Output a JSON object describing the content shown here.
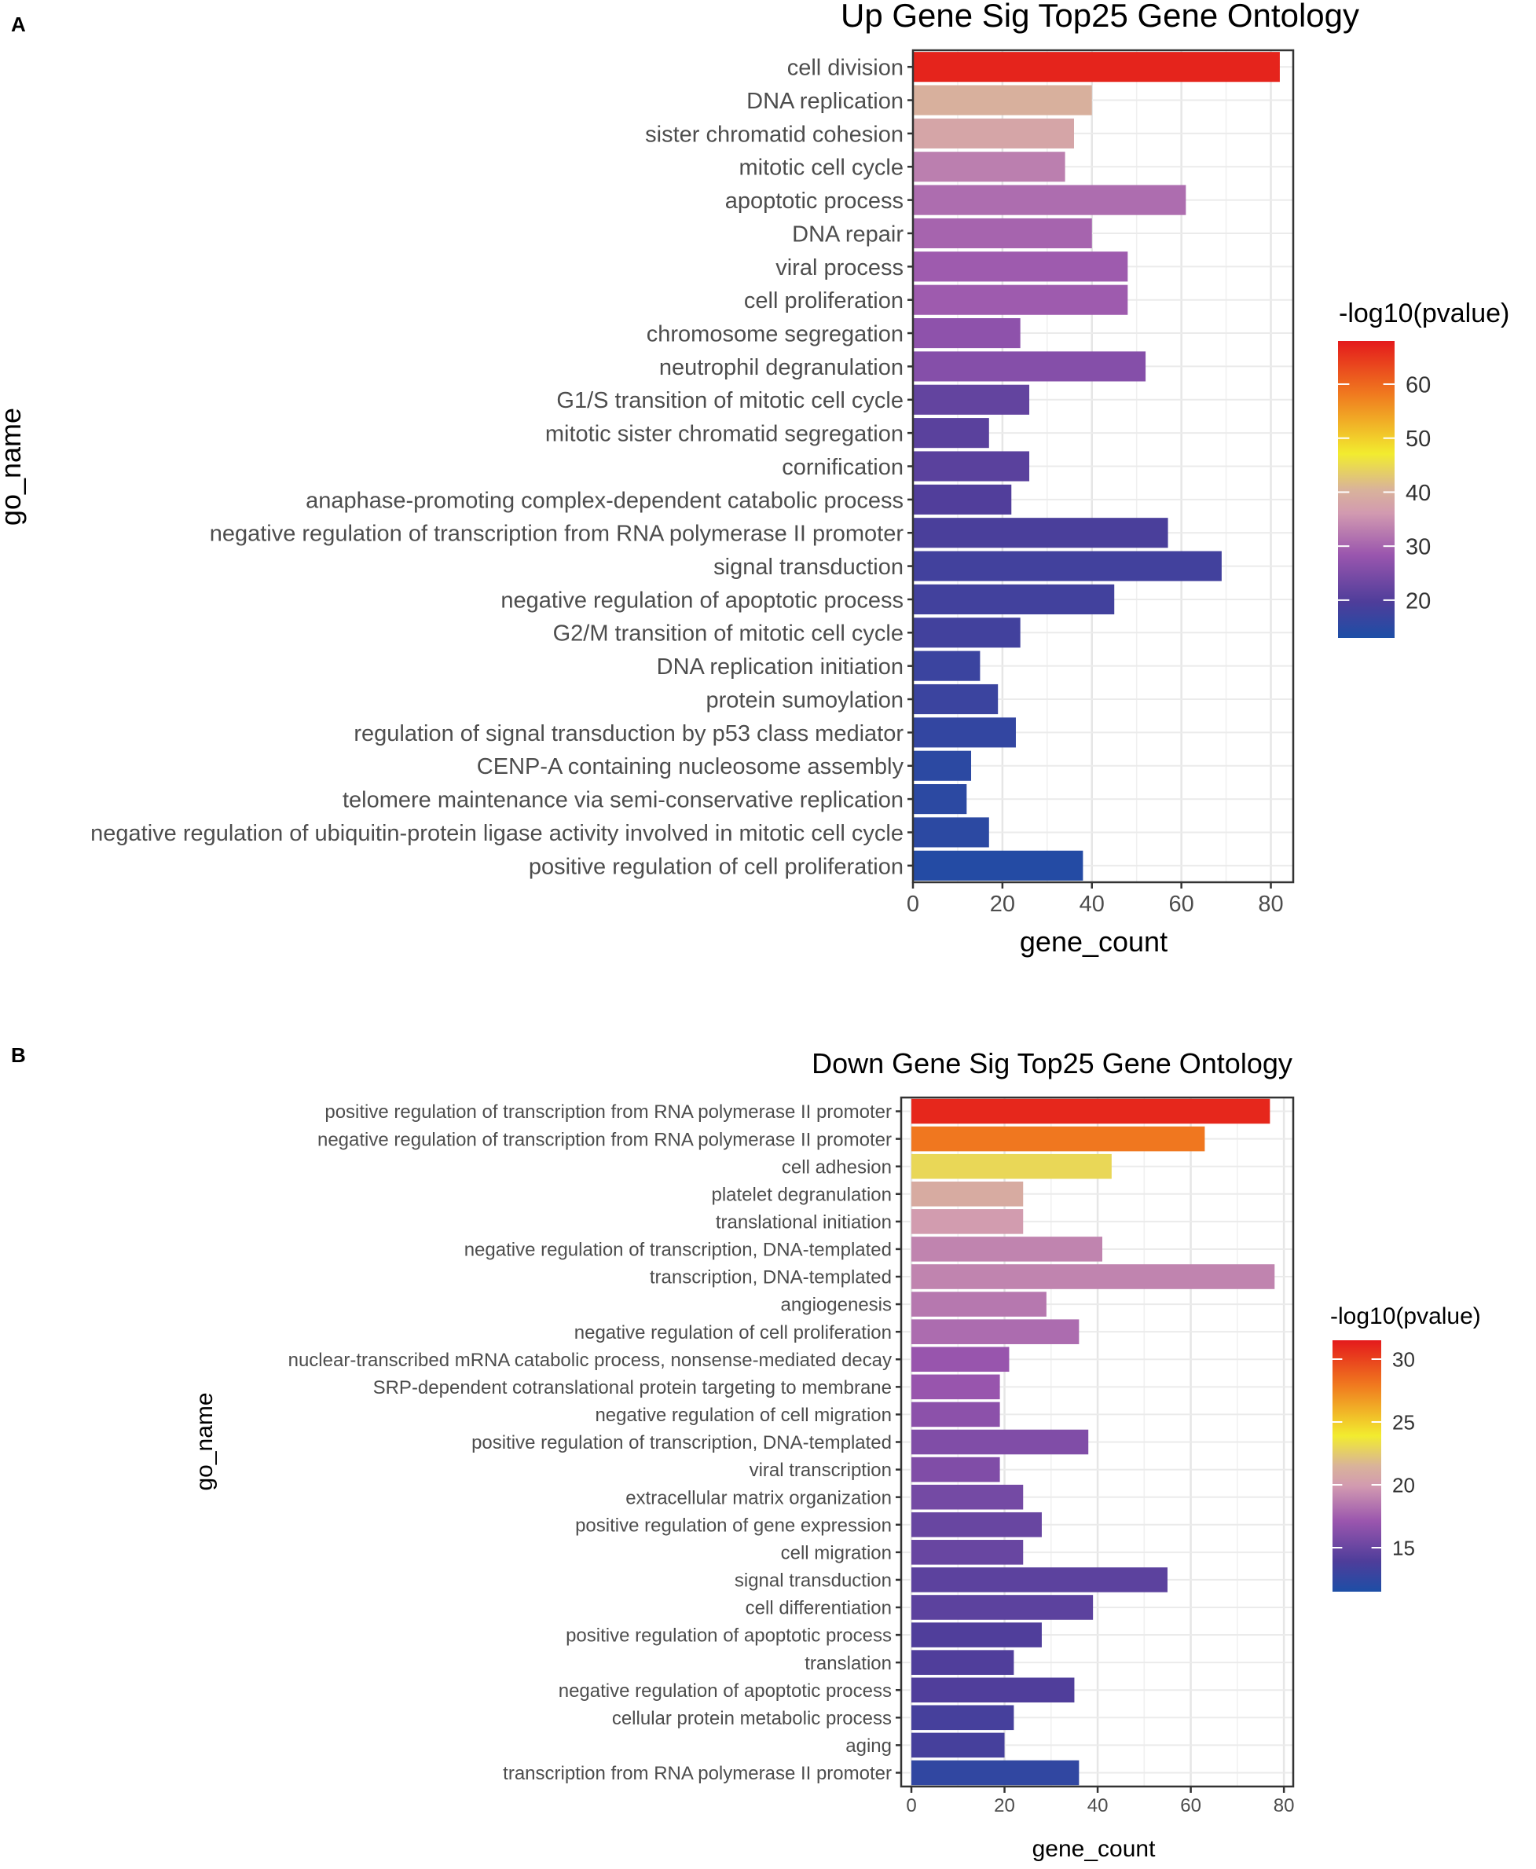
{
  "chart_data": [
    {
      "panel": "A",
      "type": "bar",
      "orientation": "horizontal",
      "title": "Up Gene Sig Top25 Gene Ontology",
      "xlabel": "gene_count",
      "ylabel": "go_name",
      "xlim": [
        0,
        85
      ],
      "xticks": [
        0,
        20,
        40,
        60,
        80
      ],
      "grid": true,
      "legend": {
        "title": "-log10(pvalue)",
        "position": "right",
        "range": [
          13,
          68
        ],
        "ticks": [
          20,
          30,
          40,
          50,
          60
        ]
      },
      "categories": [
        "cell division",
        "DNA replication",
        "sister chromatid cohesion",
        "mitotic cell cycle",
        "apoptotic process",
        "DNA repair",
        "viral process",
        "cell proliferation",
        "chromosome segregation",
        "neutrophil degranulation",
        "G1/S transition of mitotic cell cycle",
        "mitotic sister chromatid segregation",
        "cornification",
        "anaphase-promoting complex-dependent catabolic process",
        "negative regulation of transcription from RNA polymerase II promoter",
        "signal transduction",
        "negative regulation of apoptotic process",
        "G2/M transition of mitotic cell cycle",
        "DNA replication initiation",
        "protein sumoylation",
        "regulation of signal transduction by p53 class mediator",
        "CENP-A containing nucleosome assembly",
        "telomere maintenance via semi-conservative replication",
        "negative regulation of ubiquitin-protein ligase activity involved in mitotic cell cycle",
        "positive regulation of cell proliferation"
      ],
      "values": [
        82,
        40,
        36,
        34,
        61,
        40,
        48,
        48,
        24,
        52,
        26,
        17,
        26,
        22,
        57,
        69,
        45,
        24,
        15,
        19,
        23,
        13,
        12,
        17,
        38
      ],
      "neglog10p": [
        67,
        40,
        38,
        33,
        31,
        30,
        29,
        29,
        27,
        26,
        22,
        21,
        21,
        20,
        19,
        18,
        18,
        18,
        17,
        17,
        16,
        15,
        15,
        15,
        14
      ]
    },
    {
      "panel": "B",
      "type": "bar",
      "orientation": "horizontal",
      "title": "Down Gene Sig Top25 Gene Ontology",
      "xlabel": "gene_count",
      "ylabel": "go_name",
      "xlim": [
        0,
        82
      ],
      "xticks": [
        0,
        20,
        40,
        60,
        80
      ],
      "grid": true,
      "legend": {
        "title": "-log10(pvalue)",
        "position": "right",
        "range": [
          11.5,
          31.5
        ],
        "ticks": [
          15,
          20,
          25,
          30
        ]
      },
      "categories": [
        "positive regulation of transcription from RNA polymerase II promoter",
        "negative regulation of transcription from RNA polymerase II promoter",
        "cell adhesion",
        "platelet degranulation",
        "translational initiation",
        "negative regulation of transcription, DNA-templated",
        "transcription, DNA-templated",
        "angiogenesis",
        "negative regulation of cell proliferation",
        "nuclear-transcribed mRNA catabolic process, nonsense-mediated decay",
        "SRP-dependent cotranslational protein targeting to membrane",
        "negative regulation of cell migration",
        "positive regulation of transcription, DNA-templated",
        "viral transcription",
        "extracellular matrix organization",
        "positive regulation of gene expression",
        "cell migration",
        "signal transduction",
        "cell differentiation",
        "positive regulation of apoptotic process",
        "translation",
        "negative regulation of apoptotic process",
        "cellular protein metabolic process",
        "aging",
        "transcription from RNA polymerase II promoter"
      ],
      "values": [
        77,
        63,
        43,
        24,
        24,
        41,
        78,
        29,
        36,
        21,
        19,
        19,
        38,
        19,
        24,
        28,
        24,
        55,
        39,
        28,
        22,
        35,
        22,
        20,
        36
      ],
      "neglog10p": [
        31,
        28,
        23,
        21,
        20,
        19,
        19,
        18.5,
        18,
        17,
        17,
        16.5,
        16,
        16,
        15.5,
        15,
        15,
        14.5,
        14.5,
        14,
        14,
        14,
        13.5,
        13.5,
        12.5
      ]
    }
  ],
  "colorscale": [
    "#1d4ea6",
    "#4e3d9a",
    "#9a56ae",
    "#d29ab0",
    "#d9b39a",
    "#f2ec2f",
    "#f07a1f",
    "#e41a1c"
  ]
}
